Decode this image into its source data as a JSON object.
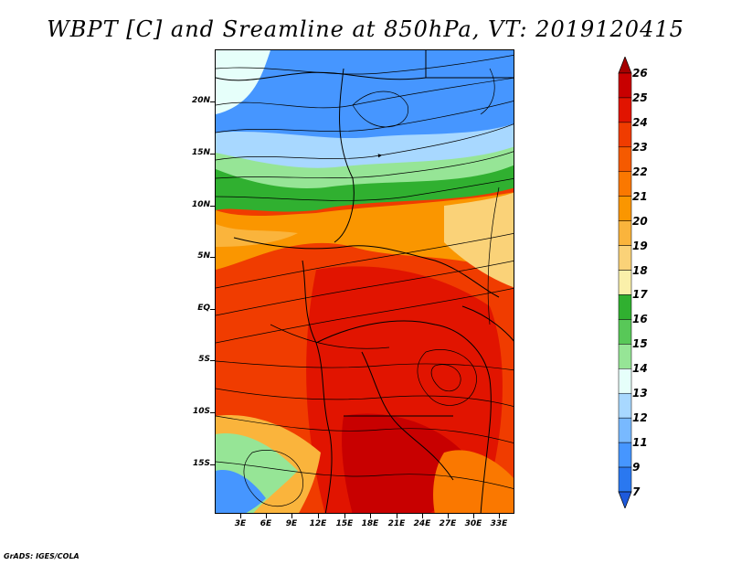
{
  "title": "WBPT [C] and Sreamline at 850hPa, VT: 2019120415",
  "footer": "GrADS: IGES/COLA",
  "lat_labels": [
    "20N",
    "15N",
    "10N",
    "5N",
    "EQ",
    "5S",
    "10S",
    "15S"
  ],
  "lon_labels": [
    "3E",
    "6E",
    "9E",
    "12E",
    "15E",
    "18E",
    "21E",
    "24E",
    "27E",
    "30E",
    "33E"
  ],
  "colorbar": {
    "labels": [
      "26",
      "25",
      "24",
      "23",
      "22",
      "21",
      "20",
      "19",
      "18",
      "17",
      "16",
      "15",
      "14",
      "13",
      "12",
      "11",
      "9",
      "7"
    ],
    "colors": [
      "#a50000",
      "#c80000",
      "#e11400",
      "#f03c00",
      "#f55a00",
      "#fa7800",
      "#fa9600",
      "#fab43c",
      "#fad278",
      "#faf0aa",
      "#30b030",
      "#58c858",
      "#96e596",
      "#e6fffa",
      "#a8d8ff",
      "#78b9ff",
      "#4696ff",
      "#2a78f0",
      "#1e5adc"
    ]
  }
}
